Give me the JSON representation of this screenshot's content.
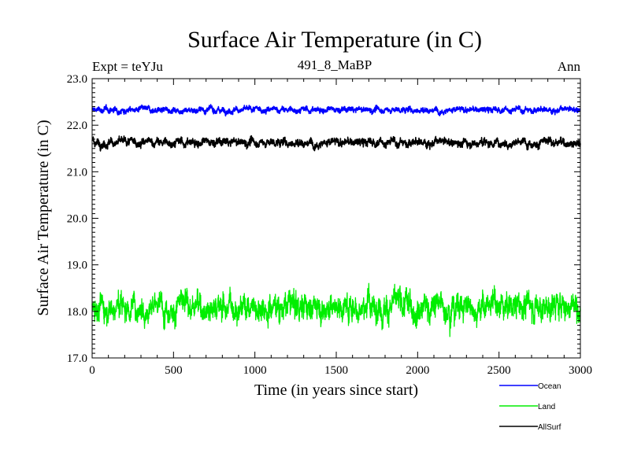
{
  "chart_data": {
    "type": "line",
    "title": "Surface Air Temperature (in C)",
    "subtitle": "491_8_MaBP",
    "left_label": "Expt = teYJu",
    "right_label": "Ann",
    "xlabel": "Time (in years since start)",
    "ylabel": "Surface Air Temperature (in C)",
    "xlim": [
      0,
      3000
    ],
    "ylim": [
      17.0,
      23.0
    ],
    "x_ticks": [
      0,
      500,
      1000,
      1500,
      2000,
      2500,
      3000
    ],
    "x_tick_labels": [
      "0",
      "500",
      "1000",
      "1500",
      "2000",
      "2500",
      "3000"
    ],
    "y_ticks": [
      17.0,
      18.0,
      19.0,
      20.0,
      21.0,
      22.0,
      23.0
    ],
    "y_tick_labels": [
      "17.0",
      "18.0",
      "19.0",
      "20.0",
      "21.0",
      "22.0",
      "23.0"
    ],
    "legend_position": "bottom-right below plot",
    "series": [
      {
        "name": "Ocean",
        "color": "#0000ff",
        "mean": 22.33,
        "noise": 0.035,
        "x_start": 0,
        "x_end": 3000,
        "n_points": 3000
      },
      {
        "name": "Land",
        "color": "#00ee00",
        "mean": 18.12,
        "noise": 0.16,
        "x_start": 0,
        "x_end": 3000,
        "n_points": 3000
      },
      {
        "name": "AllSurf",
        "color": "#000000",
        "mean": 21.63,
        "noise": 0.05,
        "x_start": 0,
        "x_end": 3000,
        "n_points": 3000
      }
    ]
  }
}
